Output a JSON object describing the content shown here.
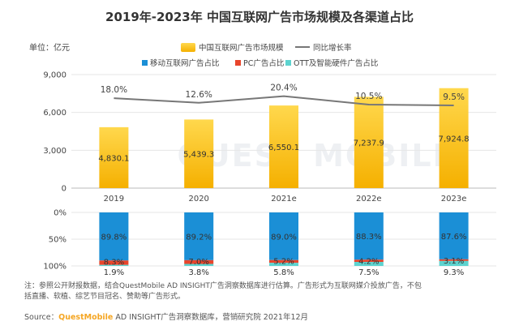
{
  "title": "2019年-2023年 中国互联网广告市场规模及各渠道占比",
  "unit_label": "单位：亿元",
  "watermark": "QUEST MOBILE",
  "note": "注：参照公开财报数据，结合QuestMobile AD INSIGHT广告洞察数据库进行估算。广告形式为互联网媒介投放广告，不包括直播、软植、综艺节目冠名、赞助等广告形式。",
  "source": {
    "prefix": "Source：",
    "brand": "QuestMobile",
    "rest": " AD INSIGHT广告洞察数据库，营销研究院 2021年12月"
  },
  "colors": {
    "bar": "#f5b800",
    "bar_light": "#ffd84d",
    "line": "#777777",
    "mobile": "#1b8fd6",
    "pc": "#e8452c",
    "ott": "#5dd3cf",
    "grid": "#e6e6e6"
  },
  "chart_data": [
    {
      "type": "bar",
      "categories": [
        "2019",
        "2020",
        "2021e",
        "2022e",
        "2023e"
      ],
      "series": [
        {
          "name": "中国互联网广告市场规模",
          "values": [
            4830.1,
            5439.3,
            6550.1,
            7237.9,
            7924.8
          ],
          "labels": [
            "4,830.1",
            "5,439.3",
            "6,550.1",
            "7,237.9",
            "7,924.8"
          ]
        },
        {
          "name": "同比增长率",
          "kind": "line",
          "values": [
            18.0,
            12.6,
            20.4,
            10.5,
            9.5
          ],
          "labels": [
            "18.0%",
            "12.6%",
            "20.4%",
            "10.5%",
            "9.5%"
          ]
        }
      ],
      "ylim": [
        0,
        9000
      ],
      "yticks": [
        0,
        3000,
        6000,
        9000
      ],
      "ytick_labels": [
        "0",
        "3,000",
        "6,000",
        "9,000"
      ],
      "grid": true,
      "legend": "top-center"
    },
    {
      "type": "bar",
      "stacked": true,
      "categories": [
        "2019",
        "2020",
        "2021e",
        "2022e",
        "2023e"
      ],
      "series": [
        {
          "name": "移动互联网广告占比",
          "values": [
            89.8,
            89.2,
            89.0,
            88.3,
            87.6
          ],
          "labels": [
            "89.8%",
            "89.2%",
            "89.0%",
            "88.3%",
            "87.6%"
          ]
        },
        {
          "name": "PC广告占比",
          "values": [
            8.3,
            7.0,
            5.2,
            4.2,
            3.1
          ],
          "labels": [
            "8.3%",
            "7.0%",
            "5.2%",
            "4.2%",
            "3.1%"
          ]
        },
        {
          "name": "OTT及智能硬件广告占比",
          "values": [
            1.9,
            3.8,
            5.8,
            7.5,
            9.3
          ],
          "labels": [
            "1.9%",
            "3.8%",
            "5.8%",
            "7.5%",
            "9.3%"
          ]
        }
      ],
      "ylim": [
        0,
        100
      ],
      "yticks": [
        0,
        50,
        100
      ],
      "ytick_labels": [
        "0%",
        "50%",
        "100%"
      ],
      "inverted_axis": true,
      "legend": "top-center"
    }
  ]
}
